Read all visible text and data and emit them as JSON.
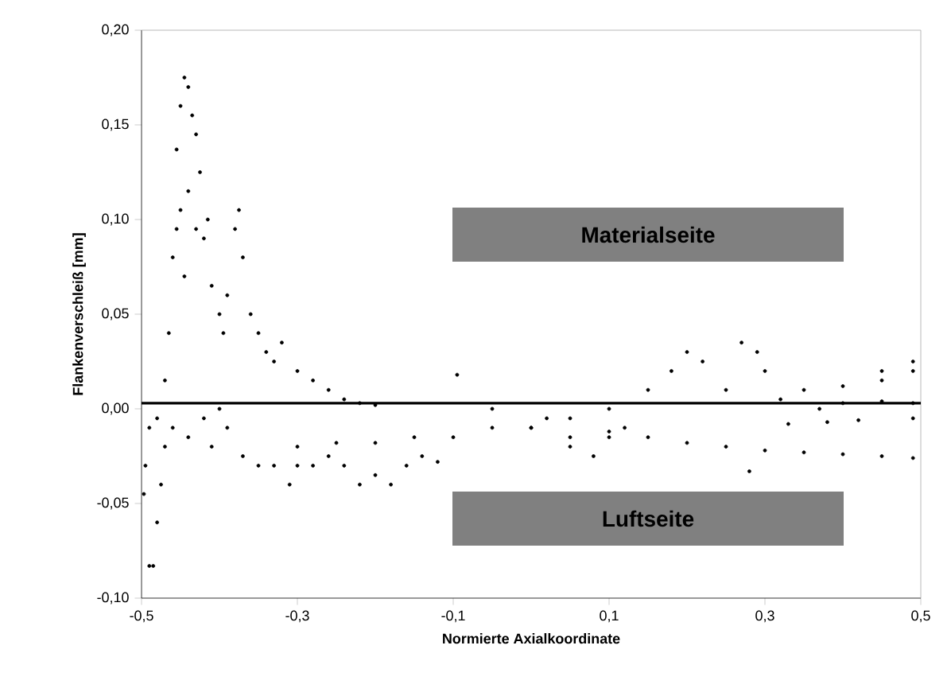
{
  "chart_data": {
    "type": "scatter",
    "xlabel": "Normierte Axialkoordinate",
    "ylabel": "Flankenverschleiß [mm]",
    "xlim": [
      -0.5,
      0.5
    ],
    "ylim": [
      -0.1,
      0.2
    ],
    "xticks": [
      {
        "value": -0.5,
        "label": "-0,5"
      },
      {
        "value": -0.3,
        "label": "-0,3"
      },
      {
        "value": -0.1,
        "label": "-0,1"
      },
      {
        "value": 0.1,
        "label": "0,1"
      },
      {
        "value": 0.3,
        "label": "0,3"
      },
      {
        "value": 0.5,
        "label": "0,5"
      }
    ],
    "yticks": [
      {
        "value": -0.1,
        "label": "-0,10"
      },
      {
        "value": -0.05,
        "label": "-0,05"
      },
      {
        "value": 0,
        "label": "0,00"
      },
      {
        "value": 0.05,
        "label": "0,05"
      },
      {
        "value": 0.1,
        "label": "0,10"
      },
      {
        "value": 0.15,
        "label": "0,15"
      },
      {
        "value": 0.2,
        "label": "0,20"
      }
    ],
    "ref_lines": [
      {
        "axis": "y",
        "value": 0.003,
        "color": "#000000"
      }
    ],
    "annotations": [
      "Materialseite",
      "Luftseite"
    ],
    "grid": false,
    "series": [
      {
        "color": "#000000",
        "x": [
          -0.495,
          -0.497,
          -0.49,
          -0.485,
          -0.48,
          -0.475,
          -0.47,
          -0.47,
          -0.465,
          -0.46,
          -0.455,
          -0.455,
          -0.45,
          -0.445,
          -0.44,
          -0.435,
          -0.43,
          -0.425,
          -0.44,
          -0.45,
          -0.445,
          -0.43,
          -0.42,
          -0.415,
          -0.41,
          -0.4,
          -0.395,
          -0.38,
          -0.375,
          -0.37,
          -0.39,
          -0.36,
          -0.35,
          -0.34,
          -0.33,
          -0.32,
          -0.3,
          -0.28,
          -0.26,
          -0.24,
          -0.22,
          -0.2,
          -0.49,
          -0.48,
          -0.46,
          -0.44,
          -0.42,
          -0.41,
          -0.4,
          -0.39,
          -0.37,
          -0.35,
          -0.33,
          -0.31,
          -0.3,
          -0.28,
          -0.26,
          -0.24,
          -0.22,
          -0.2,
          -0.18,
          -0.16,
          -0.14,
          -0.12,
          -0.3,
          -0.25,
          -0.2,
          -0.15,
          -0.1,
          -0.095,
          -0.05,
          0,
          0.05,
          0.05,
          0.08,
          0.1,
          0.1,
          0.12,
          0.15,
          0.18,
          0.2,
          0.22,
          0.25,
          0.27,
          0.29,
          0.3,
          0.32,
          0.35,
          0.4,
          0.45,
          0.49,
          0.45,
          0.49,
          0.4,
          0.45,
          0.49,
          0.38,
          0.42,
          0.49,
          0.33,
          0.37,
          0,
          0.05,
          0.1,
          0.15,
          0.2,
          0.25,
          0.3,
          0.35,
          0.4,
          0.45,
          0.49,
          0.28,
          -0.05,
          0.02
        ],
        "values": [
          -0.03,
          -0.045,
          -0.083,
          -0.083,
          -0.06,
          -0.04,
          -0.02,
          0.015,
          0.04,
          0.08,
          0.095,
          0.137,
          0.16,
          0.175,
          0.17,
          0.155,
          0.145,
          0.125,
          0.115,
          0.105,
          0.07,
          0.095,
          0.09,
          0.1,
          0.065,
          0.05,
          0.04,
          0.095,
          0.105,
          0.08,
          0.06,
          0.05,
          0.04,
          0.03,
          0.025,
          0.035,
          0.02,
          0.015,
          0.01,
          0.005,
          0.003,
          0.002,
          -0.01,
          -0.005,
          -0.01,
          -0.015,
          -0.005,
          -0.02,
          0,
          -0.01,
          -0.025,
          -0.03,
          -0.03,
          -0.04,
          -0.03,
          -0.03,
          -0.025,
          -0.03,
          -0.04,
          -0.035,
          -0.04,
          -0.03,
          -0.025,
          -0.028,
          -0.02,
          -0.018,
          -0.018,
          -0.015,
          -0.015,
          0.018,
          -0.01,
          -0.01,
          -0.005,
          -0.02,
          -0.025,
          0,
          -0.015,
          -0.01,
          0.01,
          0.02,
          0.03,
          0.025,
          0.01,
          0.035,
          0.03,
          0.02,
          0.005,
          0.01,
          0.012,
          0.015,
          0.025,
          0.02,
          0.02,
          0.003,
          0.004,
          0.003,
          -0.007,
          -0.006,
          -0.005,
          -0.008,
          0,
          -0.01,
          -0.015,
          -0.012,
          -0.015,
          -0.018,
          -0.02,
          -0.022,
          -0.023,
          -0.024,
          -0.025,
          -0.026,
          -0.033,
          0,
          -0.005
        ]
      }
    ]
  }
}
